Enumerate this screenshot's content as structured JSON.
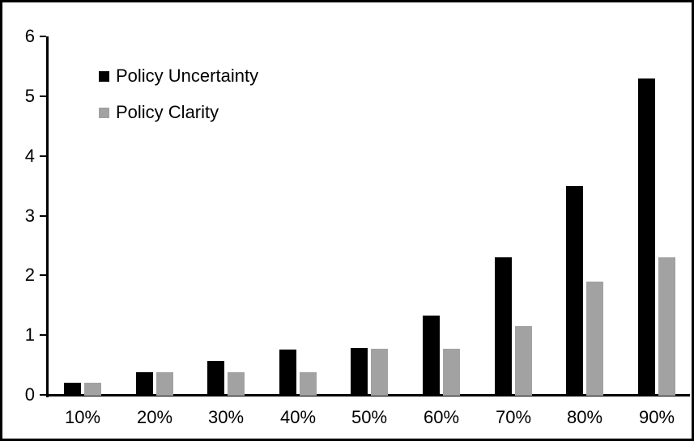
{
  "figure": {
    "background": "#ffffff",
    "border_color": "#000000",
    "text_color": "#000000"
  },
  "chart_data": {
    "type": "bar",
    "title": "",
    "xlabel": "",
    "ylabel": "",
    "categories": [
      "10%",
      "20%",
      "30%",
      "40%",
      "50%",
      "60%",
      "70%",
      "80%",
      "90%"
    ],
    "series": [
      {
        "name": "Policy Uncertainty",
        "color": "#000000",
        "values": [
          0.2,
          0.38,
          0.57,
          0.76,
          0.78,
          1.33,
          2.3,
          3.5,
          5.3
        ]
      },
      {
        "name": "Policy Clarity",
        "color": "#a2a2a2",
        "values": [
          0.2,
          0.38,
          0.38,
          0.38,
          0.77,
          0.77,
          1.15,
          1.9,
          2.3
        ]
      }
    ],
    "ylim": [
      0,
      6
    ],
    "yticks": [
      0,
      1,
      2,
      3,
      4,
      5,
      6
    ],
    "grid": false,
    "legend_position": "upper-left-inside"
  }
}
